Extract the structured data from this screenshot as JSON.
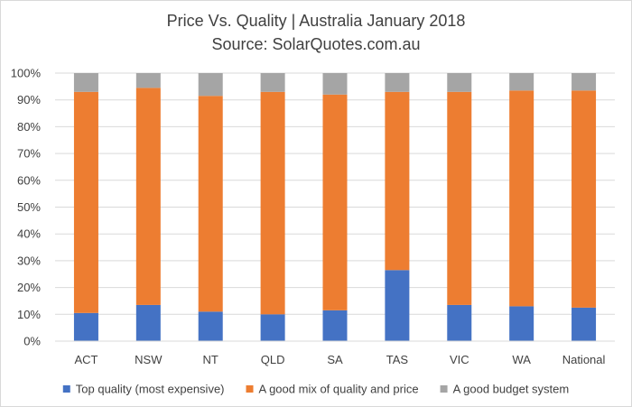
{
  "chart_data": {
    "type": "bar",
    "stacked": true,
    "title": "Price Vs. Quality | Australia January 2018",
    "subtitle": "Source: SolarQuotes.com.au",
    "categories": [
      "ACT",
      "NSW",
      "NT",
      "QLD",
      "SA",
      "TAS",
      "VIC",
      "WA",
      "National"
    ],
    "y_ticks": [
      "0%",
      "10%",
      "20%",
      "30%",
      "40%",
      "50%",
      "60%",
      "70%",
      "80%",
      "90%",
      "100%"
    ],
    "ylim": [
      0,
      100
    ],
    "grid": true,
    "legend_position": "bottom",
    "series": [
      {
        "name": "Top quality (most expensive)",
        "color": "#4472c4",
        "values": [
          10.5,
          13.5,
          11.0,
          10.0,
          11.5,
          26.5,
          13.5,
          13.0,
          12.5
        ]
      },
      {
        "name": "A good mix of quality and price",
        "color": "#ed7d31",
        "values": [
          82.5,
          81.0,
          80.5,
          83.0,
          80.5,
          66.5,
          79.5,
          80.5,
          81.0
        ]
      },
      {
        "name": "A good budget system",
        "color": "#a5a5a5",
        "values": [
          7.0,
          5.5,
          8.5,
          7.0,
          8.0,
          7.0,
          7.0,
          6.5,
          6.5
        ]
      }
    ]
  }
}
